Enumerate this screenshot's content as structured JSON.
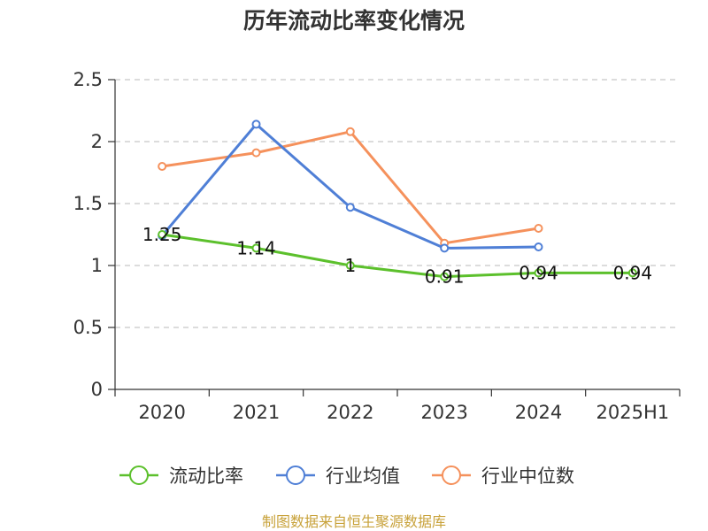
{
  "chart_data": {
    "type": "line",
    "title": "历年流动比率变化情况",
    "categories": [
      "2020",
      "2021",
      "2022",
      "2023",
      "2024",
      "2025H1"
    ],
    "ylim": [
      0,
      2.5
    ],
    "yticks": [
      "0",
      "0.5",
      "1",
      "1.5",
      "2",
      "2.5"
    ],
    "grid": true,
    "legend_position": "bottom",
    "series": [
      {
        "name": "流动比率",
        "color": "#5cc02c",
        "values": [
          1.25,
          1.14,
          1.0,
          0.91,
          0.94,
          0.94
        ],
        "labels": [
          "1.25",
          "1.14",
          "1",
          "0.91",
          "0.94",
          "0.94"
        ]
      },
      {
        "name": "行业均值",
        "color": "#4f7fd6",
        "values": [
          1.24,
          2.14,
          1.47,
          1.14,
          1.15,
          null
        ]
      },
      {
        "name": "行业中位数",
        "color": "#f5915c",
        "values": [
          1.8,
          1.91,
          2.08,
          1.18,
          1.3,
          null
        ]
      }
    ]
  },
  "source_text": "制图数据来自恒生聚源数据库"
}
